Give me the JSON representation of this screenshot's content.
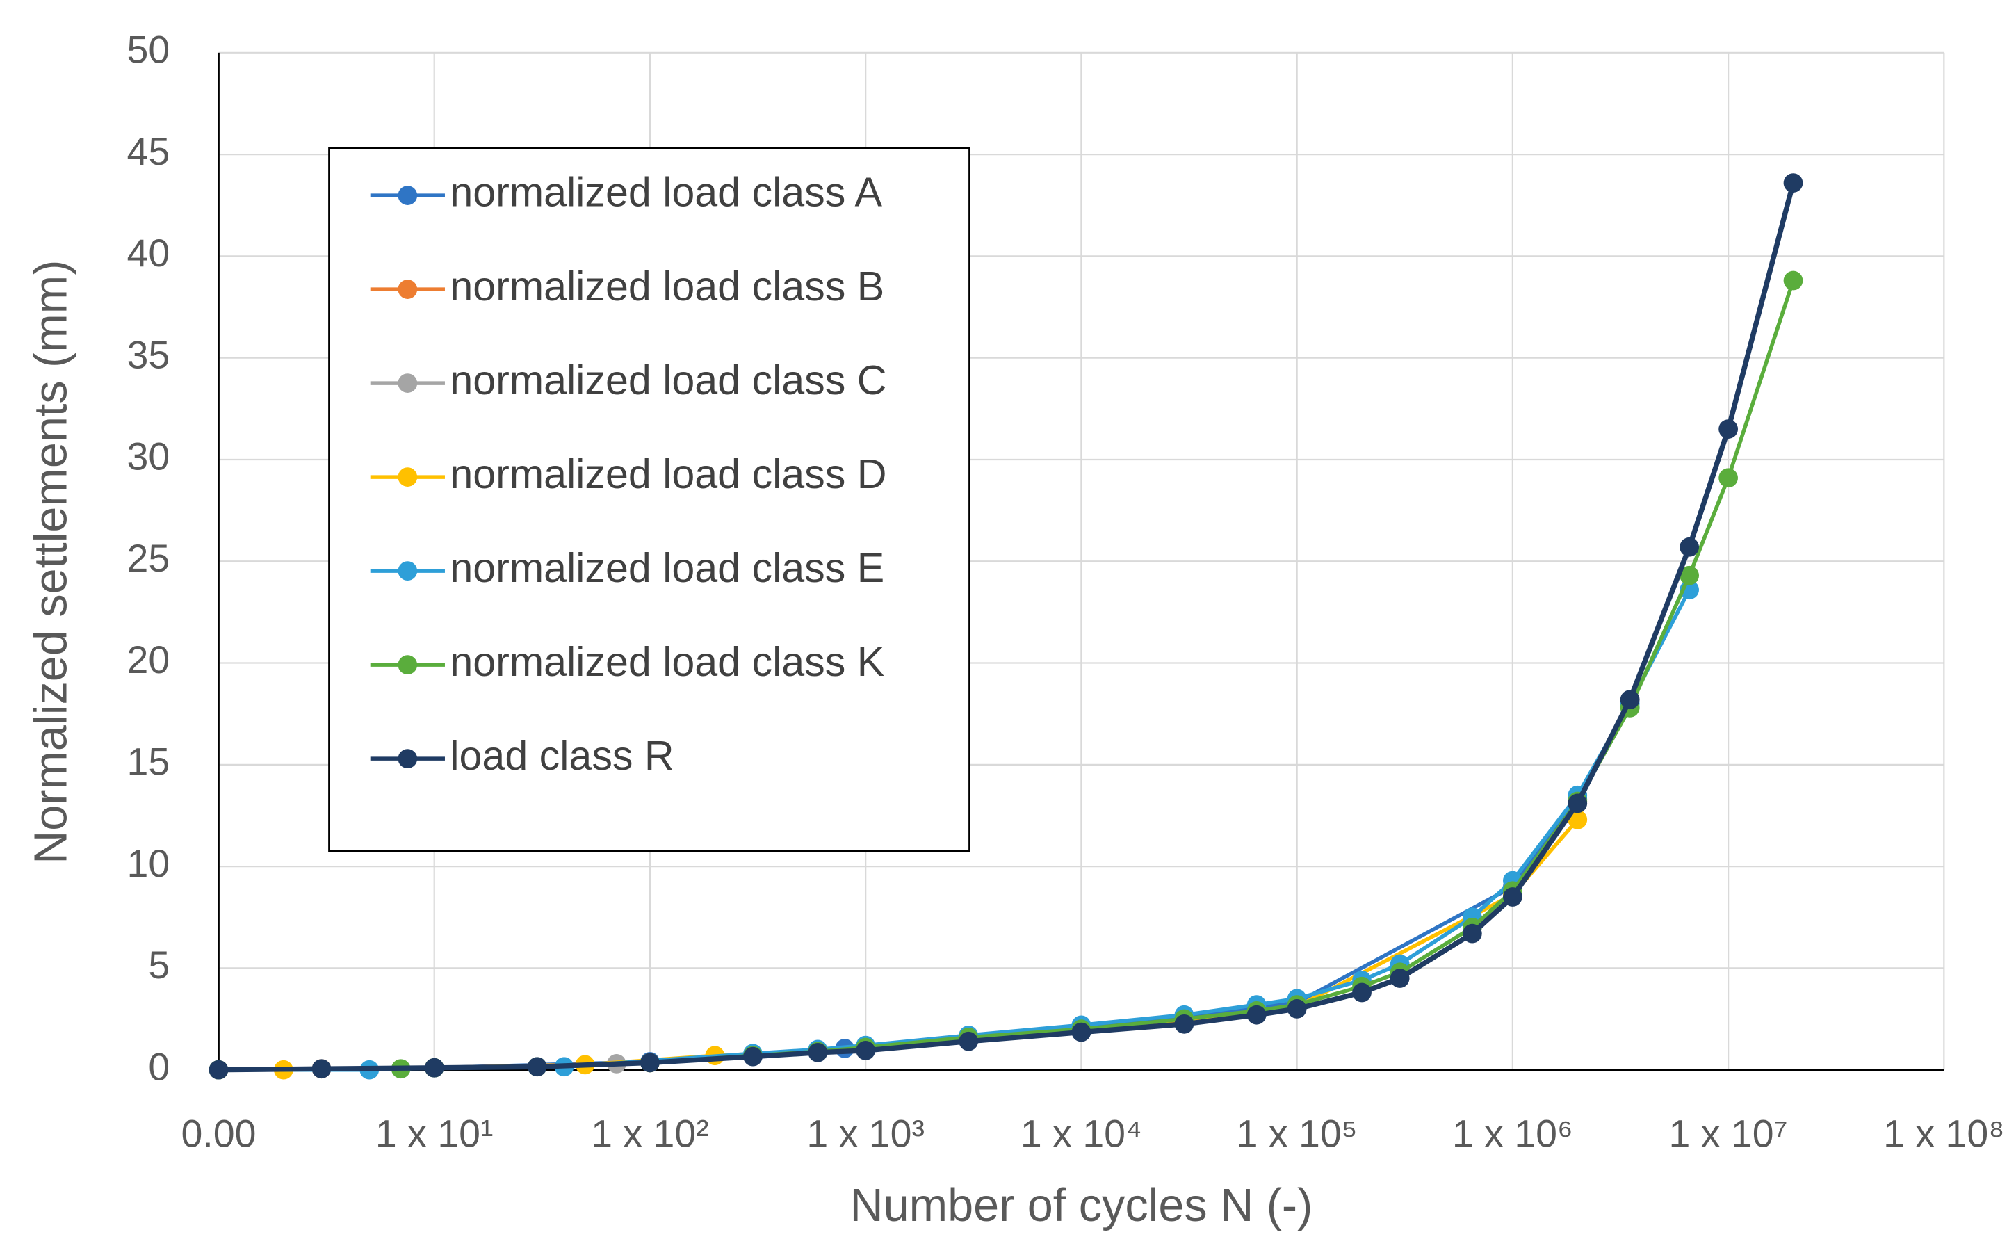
{
  "chart_data": {
    "type": "line",
    "x_label": "Number of cycles N (-)",
    "y_label": "Normalized settlements (mm)",
    "xscale": "log",
    "xlim": [
      1,
      100000000
    ],
    "xticks": [
      {
        "value": 1,
        "label": "0.00"
      },
      {
        "value": 10,
        "label": "1 x 10¹"
      },
      {
        "value": 100,
        "label": "1 x 10²"
      },
      {
        "value": 1000,
        "label": "1 x 10³"
      },
      {
        "value": 10000,
        "label": "1 x 10⁴"
      },
      {
        "value": 100000,
        "label": "1 x 10⁵"
      },
      {
        "value": 1000000,
        "label": "1 x 10⁶"
      },
      {
        "value": 10000000,
        "label": "1 x 10⁷"
      },
      {
        "value": 100000000,
        "label": "1 x 10⁸"
      }
    ],
    "ylim": [
      0,
      50
    ],
    "yticks": [
      0,
      5,
      10,
      15,
      20,
      25,
      30,
      35,
      40,
      45,
      50
    ],
    "grid": true,
    "legend": "upper left",
    "series": [
      {
        "name": "normalized load class A",
        "color": "#2f75c5",
        "x": [
          1,
          10,
          100,
          800,
          10000,
          100000,
          1000000,
          2000000
        ],
        "values": [
          0,
          0.1,
          0.4,
          1.05,
          2.0,
          3.3,
          9.0,
          13.3
        ]
      },
      {
        "name": "normalized load class B",
        "color": "#ed7d31",
        "x": [
          1,
          3,
          10,
          100
        ],
        "values": [
          0,
          0.05,
          0.1,
          0.35
        ]
      },
      {
        "name": "normalized load class C",
        "color": "#a5a5a5",
        "x": [
          1,
          10,
          70,
          300,
          1000
        ],
        "values": [
          0,
          0.1,
          0.3,
          0.7,
          1.0
        ]
      },
      {
        "name": "normalized load class D",
        "color": "#ffc000",
        "x": [
          1,
          2,
          10,
          50,
          200,
          1000,
          10000,
          100000,
          1000000,
          2000000
        ],
        "values": [
          0,
          0,
          0.1,
          0.25,
          0.7,
          1.0,
          1.9,
          3.1,
          8.6,
          12.3
        ]
      },
      {
        "name": "normalized load class E",
        "color": "#2e9fd8",
        "x": [
          1,
          5,
          10,
          40,
          300,
          600,
          1000,
          3000,
          10000,
          30000,
          65000,
          100000,
          200000,
          300000,
          650000,
          1000000,
          2000000,
          3500000,
          6600000
        ],
        "values": [
          0,
          0,
          0.1,
          0.15,
          0.8,
          1.0,
          1.2,
          1.7,
          2.2,
          2.7,
          3.2,
          3.5,
          4.4,
          5.2,
          7.5,
          9.3,
          13.5,
          18.0,
          23.6
        ]
      },
      {
        "name": "normalized load class K",
        "color": "#5aad3c",
        "x": [
          1,
          7,
          10,
          30,
          100,
          300,
          600,
          1000,
          3000,
          10000,
          30000,
          65000,
          100000,
          200000,
          300000,
          650000,
          1000000,
          2000000,
          3500000,
          6600000,
          10000000,
          20000000
        ],
        "values": [
          0,
          0.05,
          0.1,
          0.15,
          0.35,
          0.7,
          0.9,
          1.1,
          1.6,
          2.0,
          2.5,
          2.9,
          3.2,
          4.1,
          4.8,
          7.0,
          8.8,
          13.2,
          17.8,
          24.3,
          29.1,
          38.8
        ]
      },
      {
        "name": "load class R",
        "color": "#1f3b63",
        "x": [
          1,
          3,
          10,
          30,
          100,
          300,
          600,
          1000,
          3000,
          10000,
          30000,
          65000,
          100000,
          200000,
          300000,
          650000,
          1000000,
          2000000,
          3500000,
          6600000,
          10000000,
          20000000
        ],
        "values": [
          0,
          0.05,
          0.1,
          0.15,
          0.35,
          0.65,
          0.85,
          0.95,
          1.4,
          1.85,
          2.25,
          2.7,
          3.0,
          3.8,
          4.5,
          6.7,
          8.5,
          13.1,
          18.2,
          25.7,
          31.5,
          43.6
        ]
      }
    ]
  }
}
